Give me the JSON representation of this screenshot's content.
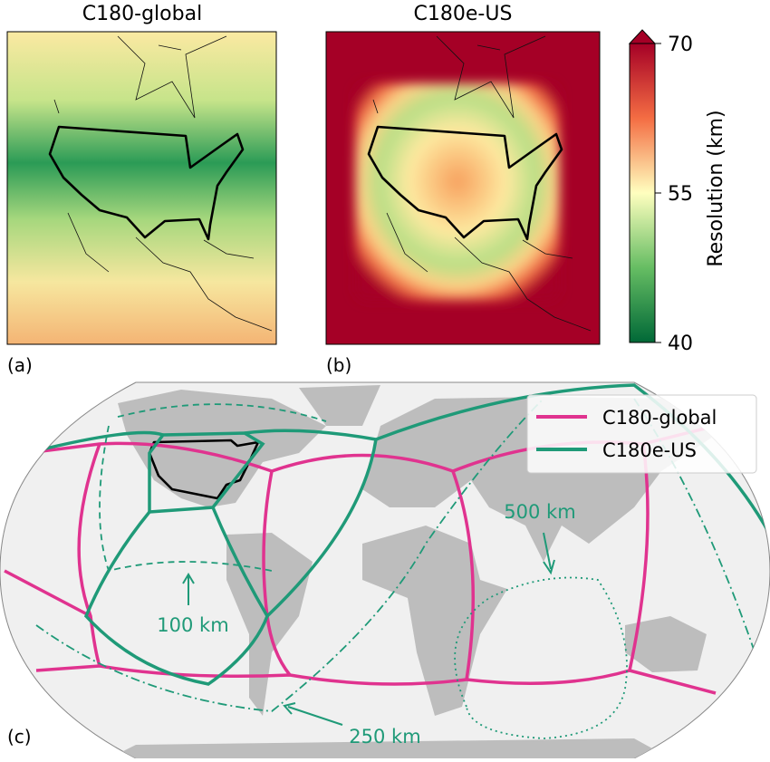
{
  "panels": [
    {
      "label": "(a)",
      "title": "C180-global"
    },
    {
      "label": "(b)",
      "title": "C180e-US"
    },
    {
      "label": "(c)"
    }
  ],
  "colorbar": {
    "label": "Resolution (km)",
    "lim": [
      40,
      70
    ],
    "ticks": [
      40,
      55,
      70
    ]
  },
  "legend": [
    {
      "name": "C180-global",
      "color": "#e0338f"
    },
    {
      "name": "C180e-US",
      "color": "#1f9a78"
    }
  ],
  "annotations": [
    "100 km",
    "250 km",
    "500 km"
  ]
}
